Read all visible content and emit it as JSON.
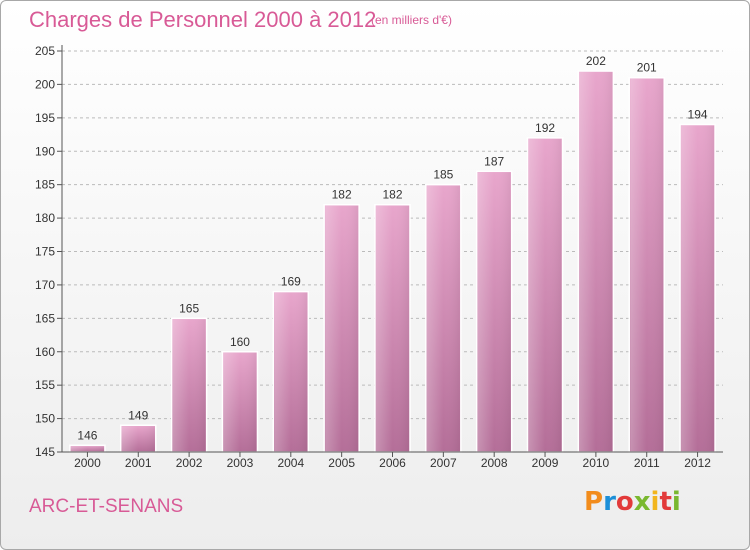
{
  "header": {
    "title": "Charges de Personnel 2000 à 2012",
    "subtitle": "(en milliers d'€)"
  },
  "footer": {
    "commune": "ARC-ET-SENANS",
    "logo_text": "Proxiti"
  },
  "colors": {
    "accent": "#d85a96",
    "bar_top": "#e8a6cc",
    "bar_bottom": "#b46e98",
    "grid": "#bbbbbb"
  },
  "chart_data": {
    "type": "bar",
    "title": "Charges de Personnel 2000 à 2012",
    "subtitle": "(en milliers d'€)",
    "categories": [
      "2000",
      "2001",
      "2002",
      "2003",
      "2004",
      "2005",
      "2006",
      "2007",
      "2008",
      "2009",
      "2010",
      "2011",
      "2012"
    ],
    "values": [
      146,
      149,
      165,
      160,
      169,
      182,
      182,
      185,
      187,
      192,
      202,
      201,
      194
    ],
    "ylim": [
      145,
      205
    ],
    "yticks": [
      145,
      150,
      155,
      160,
      165,
      170,
      175,
      180,
      185,
      190,
      195,
      200,
      205
    ],
    "grid": true,
    "data_labels": true
  }
}
